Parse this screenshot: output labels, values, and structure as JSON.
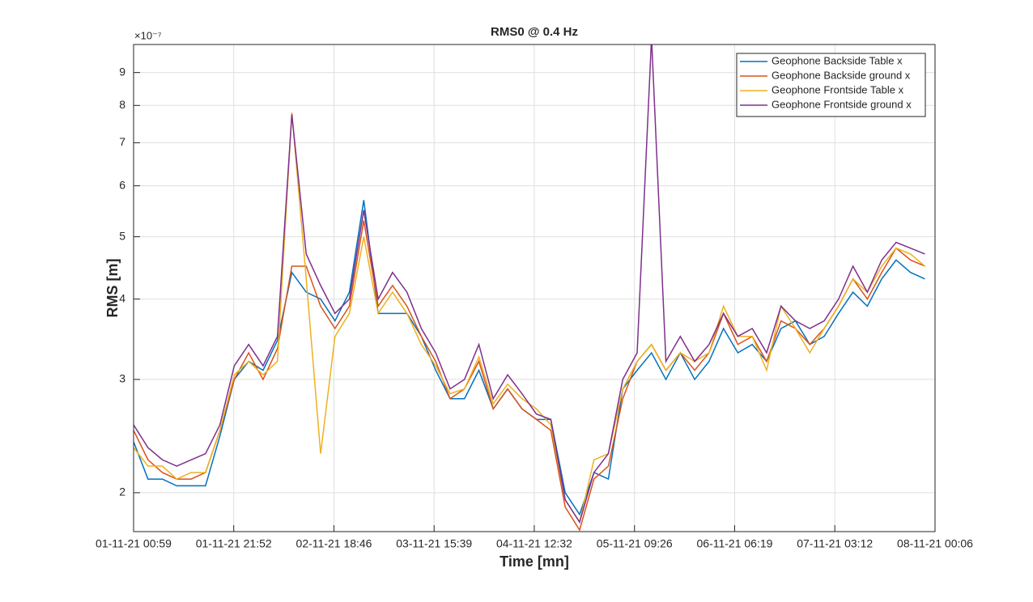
{
  "chart_data": {
    "type": "line",
    "title": "RMS0 @ 0.4 Hz",
    "x_label": "Time [mn]",
    "y_label": "RMS [m]",
    "y_multiplier": "×10⁻⁷",
    "log_y": true,
    "grid": true,
    "legend_position": "top-right",
    "x": [
      0,
      180,
      360,
      540,
      720,
      900,
      1080,
      1260,
      1440,
      1620,
      1800,
      1980,
      2160,
      2340,
      2520,
      2700,
      2880,
      3060,
      3240,
      3420,
      3600,
      3780,
      3960,
      4140,
      4320,
      4500,
      4680,
      4860,
      5040,
      5220,
      5400,
      5580,
      5760,
      5940,
      6120,
      6300,
      6480,
      6660,
      6840,
      7020,
      7200,
      7380,
      7560,
      7740,
      7920,
      8100,
      8280,
      8460,
      8640,
      8820,
      9000,
      9180,
      9360,
      9540,
      9720,
      9900
    ],
    "xlim": [
      0,
      10027
    ],
    "xticks": [
      {
        "value": 0,
        "label": "01-11-21 00:59"
      },
      {
        "value": 1253,
        "label": "01-11-21 21:52"
      },
      {
        "value": 2507,
        "label": "02-11-21 18:46"
      },
      {
        "value": 3760,
        "label": "03-11-21 15:39"
      },
      {
        "value": 5013,
        "label": "04-11-21 12:32"
      },
      {
        "value": 6267,
        "label": "05-11-21 09:26"
      },
      {
        "value": 7520,
        "label": "06-11-21 06:19"
      },
      {
        "value": 8773,
        "label": "07-11-21 03:12"
      },
      {
        "value": 10027,
        "label": "08-11-21 00:06"
      }
    ],
    "ylim": [
      1.74,
      9.95
    ],
    "yticks": [
      2,
      3,
      4,
      5,
      6,
      7,
      8,
      9
    ],
    "series": [
      {
        "name": "Geophone Backside Table x",
        "color": "#0072BD",
        "values": [
          2.4,
          2.1,
          2.1,
          2.05,
          2.05,
          2.05,
          2.45,
          3.0,
          3.2,
          3.1,
          3.45,
          4.4,
          4.1,
          4.0,
          3.7,
          4.1,
          5.7,
          3.8,
          3.8,
          3.8,
          3.5,
          3.1,
          2.8,
          2.8,
          3.1,
          2.7,
          2.9,
          2.7,
          2.6,
          2.6,
          2.0,
          1.85,
          2.15,
          2.1,
          2.9,
          3.1,
          3.3,
          3.0,
          3.3,
          3.0,
          3.2,
          3.6,
          3.3,
          3.4,
          3.2,
          3.6,
          3.7,
          3.4,
          3.5,
          3.8,
          4.1,
          3.9,
          4.3,
          4.6,
          4.4,
          4.3
        ]
      },
      {
        "name": "Geophone Backside ground x",
        "color": "#D95319",
        "values": [
          2.5,
          2.25,
          2.15,
          2.1,
          2.1,
          2.15,
          2.5,
          3.0,
          3.3,
          3.0,
          3.35,
          4.5,
          4.5,
          3.9,
          3.6,
          3.9,
          5.3,
          3.9,
          4.2,
          3.9,
          3.5,
          3.2,
          2.8,
          2.9,
          3.2,
          2.7,
          2.9,
          2.7,
          2.6,
          2.5,
          1.9,
          1.75,
          2.1,
          2.2,
          2.8,
          3.2,
          3.4,
          3.1,
          3.3,
          3.1,
          3.3,
          3.8,
          3.4,
          3.5,
          3.2,
          3.7,
          3.6,
          3.4,
          3.6,
          3.9,
          4.3,
          4.0,
          4.4,
          4.8,
          4.6,
          4.5
        ]
      },
      {
        "name": "Geophone Frontside Table x",
        "color": "#EDB120",
        "values": [
          2.35,
          2.2,
          2.2,
          2.1,
          2.15,
          2.15,
          2.5,
          3.05,
          3.2,
          3.05,
          3.2,
          7.8,
          4.3,
          2.3,
          3.5,
          3.8,
          5.0,
          3.8,
          4.1,
          3.8,
          3.4,
          3.15,
          2.85,
          2.9,
          3.25,
          2.75,
          2.95,
          2.8,
          2.7,
          2.55,
          1.95,
          1.8,
          2.25,
          2.3,
          2.9,
          3.2,
          3.4,
          3.1,
          3.3,
          3.2,
          3.3,
          3.9,
          3.5,
          3.5,
          3.1,
          3.9,
          3.6,
          3.3,
          3.6,
          3.9,
          4.3,
          4.1,
          4.5,
          4.8,
          4.7,
          4.5
        ]
      },
      {
        "name": "Geophone Frontside ground x",
        "color": "#7E2F8E",
        "values": [
          2.55,
          2.35,
          2.25,
          2.2,
          2.25,
          2.3,
          2.55,
          3.15,
          3.4,
          3.15,
          3.5,
          7.75,
          4.7,
          4.2,
          3.8,
          4.0,
          5.5,
          4.0,
          4.4,
          4.1,
          3.6,
          3.3,
          2.9,
          3.0,
          3.4,
          2.8,
          3.05,
          2.85,
          2.65,
          2.6,
          1.95,
          1.8,
          2.15,
          2.3,
          3.0,
          3.3,
          10.2,
          3.2,
          3.5,
          3.2,
          3.4,
          3.8,
          3.5,
          3.6,
          3.3,
          3.9,
          3.7,
          3.6,
          3.7,
          4.0,
          4.5,
          4.1,
          4.6,
          4.9,
          4.8,
          4.7
        ]
      }
    ]
  }
}
